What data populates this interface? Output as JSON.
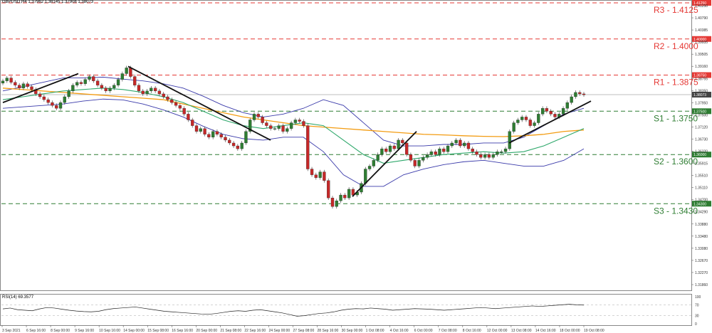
{
  "header": {
    "symbol": "GBPUSD,H4",
    "ohlc": "1.37962 1.38145 1.37908 1.38073"
  },
  "rsi": {
    "label": "RSI(14) 69.3577",
    "levels": [
      100,
      70,
      30,
      0
    ]
  },
  "colors": {
    "up": "#2e7d32",
    "down": "#c62828",
    "bands": "#3a3aaa",
    "ma_green": "#2ea86b",
    "ma_orange": "#f39c12",
    "resistance": "#e53935",
    "support": "#2e7d32",
    "trend": "#111111"
  },
  "chart_data": {
    "type": "candlestick",
    "title": "GBPUSD,H4",
    "ylim": [
      1.3145,
      1.4125
    ],
    "y_ticks": [
      "1.41250",
      "1.40790",
      "1.40385",
      "1.39935",
      "1.39505",
      "1.39160",
      "1.38755",
      "1.38350",
      "1.37950",
      "1.37500",
      "1.37120",
      "1.36730",
      "1.36320",
      "1.35915",
      "1.35510",
      "1.35110",
      "1.34700",
      "1.34290",
      "1.33880",
      "1.33480",
      "1.33080",
      "1.32670",
      "1.32270",
      "1.31860"
    ],
    "x_ticks": [
      "3 Sep 2021",
      "6 Sep 16:00",
      "8 Sep 00:00",
      "9 Sep 16:00",
      "10 Sep 16:00",
      "14 Sep 00:00",
      "15 Sep 08:00",
      "16 Sep 16:00",
      "20 Sep 00:00",
      "21 Sep 08:00",
      "22 Sep 16:00",
      "24 Sep 00:00",
      "27 Sep 08:00",
      "28 Sep 16:00",
      "30 Sep 00:00",
      "1 Oct 08:00",
      "4 Oct 16:00",
      "6 Oct 00:00",
      "7 Oct 08:00",
      "8 Oct 16:00",
      "12 Oct 00:00",
      "13 Oct 08:00",
      "14 Oct 16:00",
      "18 Oct 00:00",
      "19 Oct 08:00"
    ],
    "levels": [
      {
        "name": "R3 - 1.4125",
        "value": 1.4125,
        "price_tag": "1.41250",
        "kind": "resistance"
      },
      {
        "name": "R2 - 1.4000",
        "value": 1.4,
        "price_tag": "1.40000",
        "kind": "resistance"
      },
      {
        "name": "R1 - 1.3875",
        "value": 1.3875,
        "price_tag": "1.38750",
        "kind": "resistance"
      },
      {
        "name": "S1 - 1.3750",
        "value": 1.375,
        "price_tag": "1.37500",
        "kind": "support"
      },
      {
        "name": "S2 - 1.3600",
        "value": 1.36,
        "price_tag": "1.36000",
        "kind": "support"
      },
      {
        "name": "S3 - 1.3430",
        "value": 1.343,
        "price_tag": "1.34300",
        "kind": "support"
      }
    ],
    "current_price": {
      "value": 1.38073,
      "tag": "1.38073"
    },
    "close_path": [
      1.3855,
      1.3865,
      1.385,
      1.384,
      1.383,
      1.3845,
      1.3835,
      1.3825,
      1.381,
      1.38,
      1.379,
      1.378,
      1.377,
      1.376,
      1.378,
      1.38,
      1.382,
      1.384,
      1.385,
      1.3845,
      1.386,
      1.387,
      1.3855,
      1.384,
      1.383,
      1.382,
      1.383,
      1.384,
      1.386,
      1.388,
      1.39,
      1.387,
      1.384,
      1.382,
      1.381,
      1.382,
      1.383,
      1.382,
      1.381,
      1.38,
      1.379,
      1.378,
      1.377,
      1.376,
      1.374,
      1.372,
      1.37,
      1.368,
      1.369,
      1.367,
      1.366,
      1.368,
      1.367,
      1.366,
      1.365,
      1.364,
      1.363,
      1.362,
      1.364,
      1.368,
      1.372,
      1.374,
      1.373,
      1.371,
      1.37,
      1.369,
      1.369,
      1.37,
      1.368,
      1.369,
      1.371,
      1.372,
      1.3715,
      1.37,
      1.355,
      1.353,
      1.352,
      1.354,
      1.351,
      1.345,
      1.342,
      1.344,
      1.346,
      1.345,
      1.348,
      1.346,
      1.347,
      1.35,
      1.355,
      1.356,
      1.358,
      1.36,
      1.362,
      1.361,
      1.363,
      1.362,
      1.365,
      1.364,
      1.36,
      1.358,
      1.356,
      1.358,
      1.359,
      1.36,
      1.361,
      1.36,
      1.362,
      1.361,
      1.363,
      1.364,
      1.365,
      1.363,
      1.364,
      1.362,
      1.361,
      1.36,
      1.359,
      1.36,
      1.359,
      1.36,
      1.361,
      1.361,
      1.362,
      1.368,
      1.371,
      1.372,
      1.373,
      1.372,
      1.37,
      1.371,
      1.374,
      1.376,
      1.375,
      1.374,
      1.373,
      1.374,
      1.376,
      1.378,
      1.38,
      1.3815,
      1.381,
      1.3807
    ],
    "ma_orange": [
      1.383,
      1.3825,
      1.382,
      1.3815,
      1.381,
      1.3805,
      1.38,
      1.3795,
      1.379,
      1.3775,
      1.376,
      1.3745,
      1.373,
      1.372,
      1.371,
      1.37,
      1.3695,
      1.369,
      1.3685,
      1.368,
      1.3675,
      1.367,
      1.3668,
      1.3665,
      1.3663,
      1.3662,
      1.3665,
      1.367,
      1.368,
      1.3685
    ],
    "ma_green": [
      1.379,
      1.38,
      1.381,
      1.382,
      1.3825,
      1.383,
      1.3825,
      1.3815,
      1.38,
      1.378,
      1.375,
      1.372,
      1.37,
      1.369,
      1.37,
      1.371,
      1.37,
      1.365,
      1.36,
      1.357,
      1.358,
      1.359,
      1.36,
      1.3605,
      1.361,
      1.3605,
      1.361,
      1.363,
      1.366,
      1.369
    ],
    "trendlines": [
      {
        "from": [
          1.378
        ],
        "to": [
          1.388
        ]
      },
      {
        "from": [
          1.3905
        ],
        "to": [
          1.365
        ]
      },
      {
        "from": [
          1.3455
        ],
        "to": [
          1.368
        ]
      },
      {
        "from": [
          1.364
        ],
        "to": [
          1.3785
        ]
      }
    ],
    "rsi_values": [
      55,
      58,
      52,
      50,
      48,
      55,
      60,
      58,
      54,
      50,
      47,
      45,
      44,
      46,
      52,
      56,
      58,
      60,
      62,
      58,
      54,
      50,
      46,
      44,
      42,
      40,
      38,
      36,
      35,
      38,
      42,
      46,
      48,
      46,
      50,
      52,
      48,
      44,
      40,
      34,
      28,
      30,
      34,
      38,
      40,
      44,
      50,
      54,
      56,
      55,
      58,
      56,
      54,
      50,
      52,
      54,
      56,
      55,
      54,
      52,
      50,
      52,
      54,
      56,
      58,
      60,
      58,
      56,
      58,
      60,
      62,
      64,
      66,
      64,
      66,
      68,
      70,
      72,
      70,
      69
    ]
  }
}
